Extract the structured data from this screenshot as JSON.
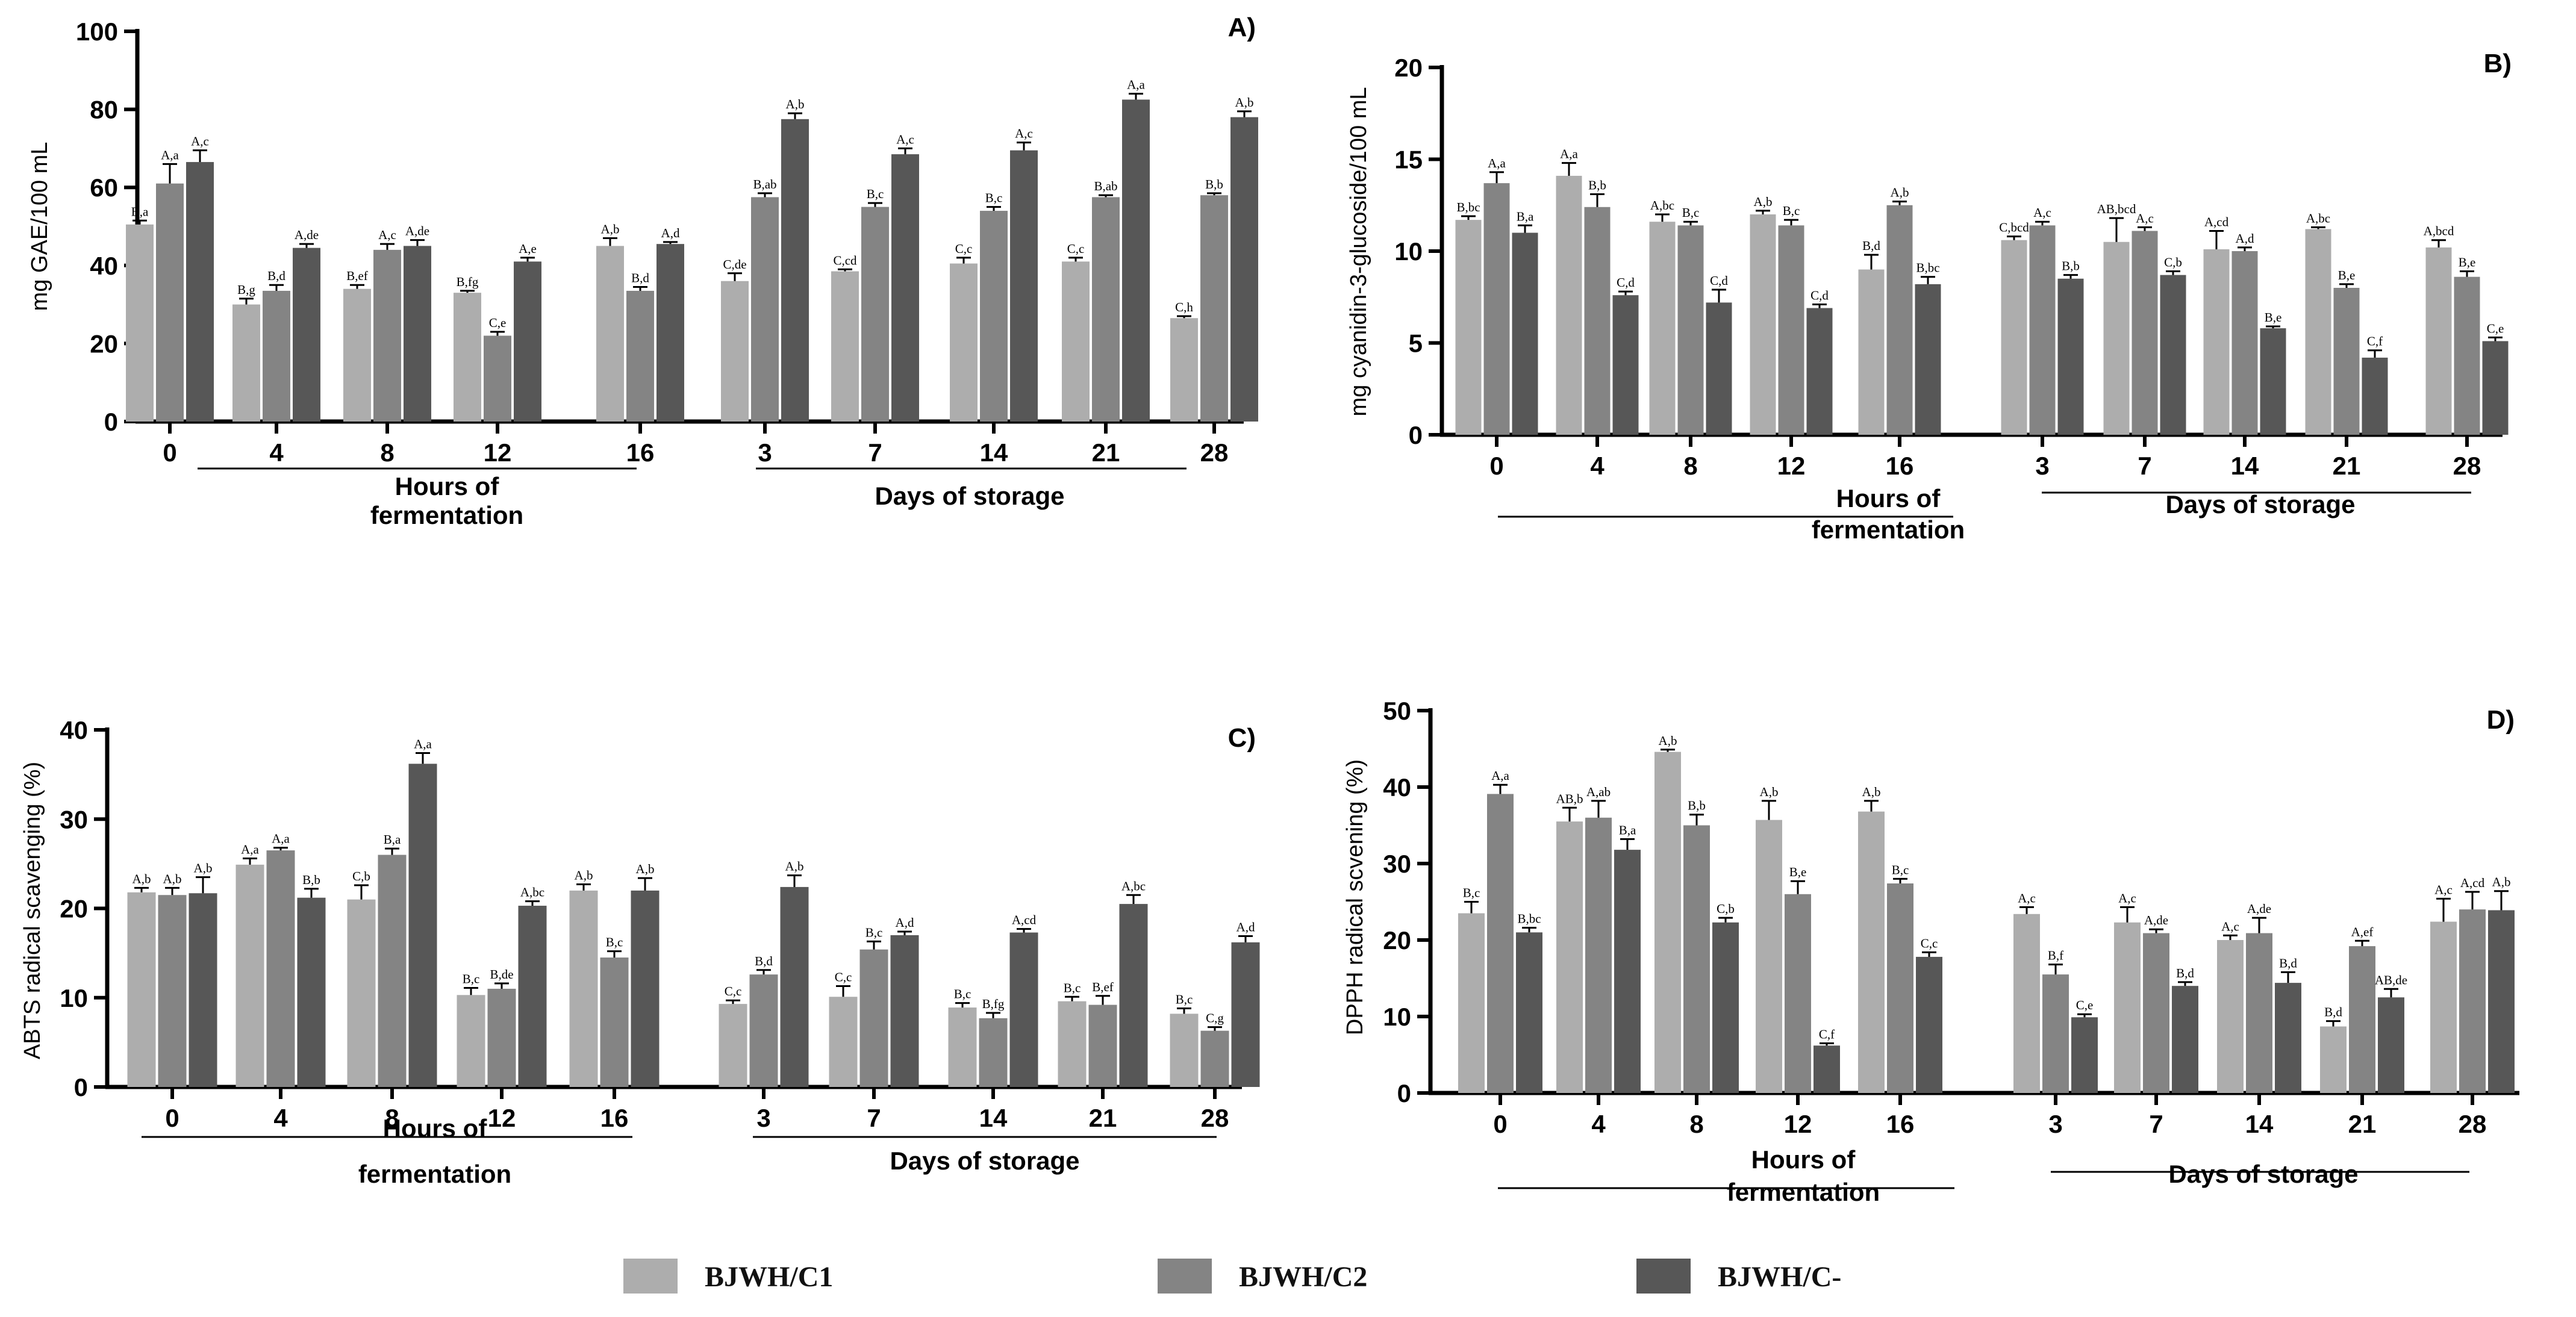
{
  "colors": {
    "BJWH/C1": "#adadad",
    "BJWH/C2": "#848484",
    "BJWH/C-": "#575757"
  },
  "legend": [
    "BJWH/C1",
    "BJWH/C2",
    "BJWH/C-"
  ],
  "chart_data": [
    {
      "type": "bar",
      "title": "A)",
      "ylabel": "mg GAE/100 mL",
      "ylim": [
        0,
        100
      ],
      "yticks": [
        0,
        20,
        40,
        60,
        80,
        100
      ],
      "categories": [
        "0",
        "4",
        "8",
        "12",
        "16",
        "3",
        "7",
        "14",
        "21",
        "28"
      ],
      "groups": [
        "Hours of fermentation",
        "Days of storage"
      ],
      "series": [
        {
          "name": "BJWH/C1",
          "values": [
            50.5,
            30,
            34,
            33,
            45,
            36,
            38.5,
            40.5,
            41,
            26.5
          ],
          "errors": [
            1,
            1.5,
            1,
            0.5,
            2,
            2,
            0.5,
            1.5,
            1,
            0.5
          ],
          "labels": [
            "B,a",
            "B,g",
            "B,ef",
            "B,fg",
            "A,b",
            "C,de",
            "C,cd",
            "C,c",
            "C,c",
            "C,h"
          ]
        },
        {
          "name": "BJWH/C2",
          "values": [
            61,
            33.5,
            44,
            22,
            33.5,
            57.5,
            55,
            54,
            57.5,
            58
          ],
          "errors": [
            5,
            1.5,
            1.5,
            1,
            1,
            1,
            1,
            1,
            0.5,
            0.5
          ],
          "labels": [
            "A,a",
            "B,d",
            "A,c",
            "C,e",
            "B,d",
            "B,ab",
            "B,c",
            "B,c",
            "B,ab",
            "B,b"
          ]
        },
        {
          "name": "BJWH/C-",
          "values": [
            66.5,
            44.5,
            45,
            41,
            45.5,
            77.5,
            68.5,
            69.5,
            82.5,
            78
          ],
          "errors": [
            3,
            1,
            1.5,
            1,
            0.5,
            1.5,
            1.5,
            2,
            1.5,
            1.5
          ],
          "labels": [
            "A,c",
            "A,de",
            "A,de",
            "A,e",
            "A,d",
            "A,b",
            "A,c",
            "A,c",
            "A,a",
            "A,b"
          ]
        }
      ]
    },
    {
      "type": "bar",
      "title": "B)",
      "ylabel": "mg cyanidin-3-glucoside/100 mL",
      "ylim": [
        0,
        20
      ],
      "yticks": [
        0,
        5,
        10,
        15,
        20
      ],
      "categories": [
        "0",
        "4",
        "8",
        "12",
        "16",
        "3",
        "7",
        "14",
        "21",
        "28"
      ],
      "groups": [
        "Hours of fermentation",
        "Days of storage"
      ],
      "series": [
        {
          "name": "BJWH/C1",
          "values": [
            11.7,
            14.1,
            11.6,
            12,
            9,
            10.6,
            10.5,
            10.1,
            11.2,
            10.2
          ],
          "errors": [
            0.2,
            0.7,
            0.4,
            0.2,
            0.8,
            0.2,
            1.3,
            1,
            0.1,
            0.4
          ],
          "labels": [
            "B,bc",
            "A,a",
            "A,bc",
            "A,b",
            "B,d",
            "C,bcd",
            "AB,bcd",
            "A,cd",
            "A,bc",
            "A,bcd"
          ]
        },
        {
          "name": "BJWH/C2",
          "values": [
            13.7,
            12.4,
            11.4,
            11.4,
            12.5,
            11.4,
            11.1,
            10,
            8,
            8.6
          ],
          "errors": [
            0.6,
            0.7,
            0.2,
            0.3,
            0.2,
            0.2,
            0.2,
            0.2,
            0.2,
            0.3
          ],
          "labels": [
            "A,a",
            "B,b",
            "B,c",
            "B,c",
            "A,b",
            "A,c",
            "A,c",
            "A,d",
            "B,e",
            "B,e"
          ]
        },
        {
          "name": "BJWH/C-",
          "values": [
            11,
            7.6,
            7.2,
            6.9,
            8.2,
            8.5,
            8.7,
            5.8,
            4.2,
            5.1
          ],
          "errors": [
            0.4,
            0.2,
            0.7,
            0.2,
            0.4,
            0.2,
            0.2,
            0.1,
            0.4,
            0.2
          ],
          "labels": [
            "B,a",
            "C,d",
            "C,d",
            "C,d",
            "B,bc",
            "B,b",
            "C,b",
            "B,e",
            "C,f",
            "C,e"
          ]
        }
      ]
    },
    {
      "type": "bar",
      "title": "C)",
      "ylabel": "ABTS radical scavenging (%)",
      "ylim": [
        0,
        40
      ],
      "yticks": [
        0,
        10,
        20,
        30,
        40
      ],
      "categories": [
        "0",
        "4",
        "8",
        "12",
        "16",
        "3",
        "7",
        "14",
        "21",
        "28"
      ],
      "groups": [
        "Hours of fermentation",
        "Days of storage"
      ],
      "series": [
        {
          "name": "BJWH/C1",
          "values": [
            21.8,
            24.9,
            21,
            10.3,
            22,
            9.3,
            10.1,
            8.9,
            9.6,
            8.2
          ],
          "errors": [
            0.5,
            0.7,
            1.6,
            0.8,
            0.7,
            0.4,
            1.2,
            0.5,
            0.5,
            0.6
          ],
          "labels": [
            "A,b",
            "A,a",
            "C,b",
            "B,c",
            "A,b",
            "C,c",
            "C,c",
            "B,c",
            "B,c",
            "B,c"
          ]
        },
        {
          "name": "BJWH/C2",
          "values": [
            21.5,
            26.5,
            26,
            11,
            14.5,
            12.6,
            15.4,
            7.7,
            9.2,
            6.3
          ],
          "errors": [
            0.8,
            0.3,
            0.7,
            0.6,
            0.7,
            0.5,
            0.9,
            0.6,
            1,
            0.4
          ],
          "labels": [
            "A,b",
            "A,a",
            "B,a",
            "B,de",
            "B,c",
            "B,d",
            "B,c",
            "B,fg",
            "B,ef",
            "C,g"
          ]
        },
        {
          "name": "BJWH/C-",
          "values": [
            21.7,
            21.2,
            36.2,
            20.3,
            22,
            22.4,
            17,
            17.3,
            20.5,
            16.2
          ],
          "errors": [
            1.8,
            1,
            1.2,
            0.5,
            1.4,
            1.3,
            0.4,
            0.4,
            1,
            0.7
          ],
          "labels": [
            "A,b",
            "B,b",
            "A,a",
            "A,bc",
            "A,b",
            "A,b",
            "A,d",
            "A,cd",
            "A,bc",
            "A,d"
          ]
        }
      ]
    },
    {
      "type": "bar",
      "title": "D)",
      "ylabel": "DPPH radical scvening (%)",
      "ylim": [
        0,
        50
      ],
      "yticks": [
        0,
        10,
        20,
        30,
        40,
        50
      ],
      "categories": [
        "0",
        "4",
        "8",
        "12",
        "16",
        "3",
        "7",
        "14",
        "21",
        "28"
      ],
      "groups": [
        "Hours of fermentation",
        "Days of storage"
      ],
      "series": [
        {
          "name": "BJWH/C1",
          "values": [
            23.5,
            35.5,
            44.6,
            35.7,
            36.8,
            23.4,
            22.3,
            20,
            8.7,
            22.4
          ],
          "errors": [
            1.5,
            1.8,
            0.3,
            2.5,
            1.4,
            0.9,
            2,
            0.6,
            0.7,
            3
          ],
          "labels": [
            "B,c",
            "AB,b",
            "A,b",
            "A,b",
            "A,b",
            "A,c",
            "A,c",
            "A,c",
            "B,d",
            "A,c"
          ]
        },
        {
          "name": "BJWH/C2",
          "values": [
            39.1,
            36,
            35,
            26,
            27.4,
            15.5,
            20.9,
            20.9,
            19.2,
            24
          ],
          "errors": [
            1.2,
            2.2,
            1.4,
            1.7,
            0.6,
            1.3,
            0.5,
            2,
            0.7,
            2.3
          ],
          "labels": [
            "A,a",
            "A,ab",
            "B,b",
            "B,e",
            "B,c",
            "B,f",
            "A,de",
            "A,de",
            "A,ef",
            "A,cd"
          ]
        },
        {
          "name": "BJWH/C-",
          "values": [
            21,
            31.8,
            22.3,
            6.2,
            17.8,
            9.9,
            14,
            14.4,
            12.5,
            23.9
          ],
          "errors": [
            0.6,
            1.4,
            0.6,
            0.3,
            0.6,
            0.4,
            0.5,
            1.4,
            1.1,
            2.5
          ],
          "labels": [
            "B,bc",
            "B,a",
            "C,b",
            "C,f",
            "C,c",
            "C,e",
            "B,d",
            "B,d",
            "AB,de",
            "A,b"
          ]
        }
      ]
    }
  ]
}
